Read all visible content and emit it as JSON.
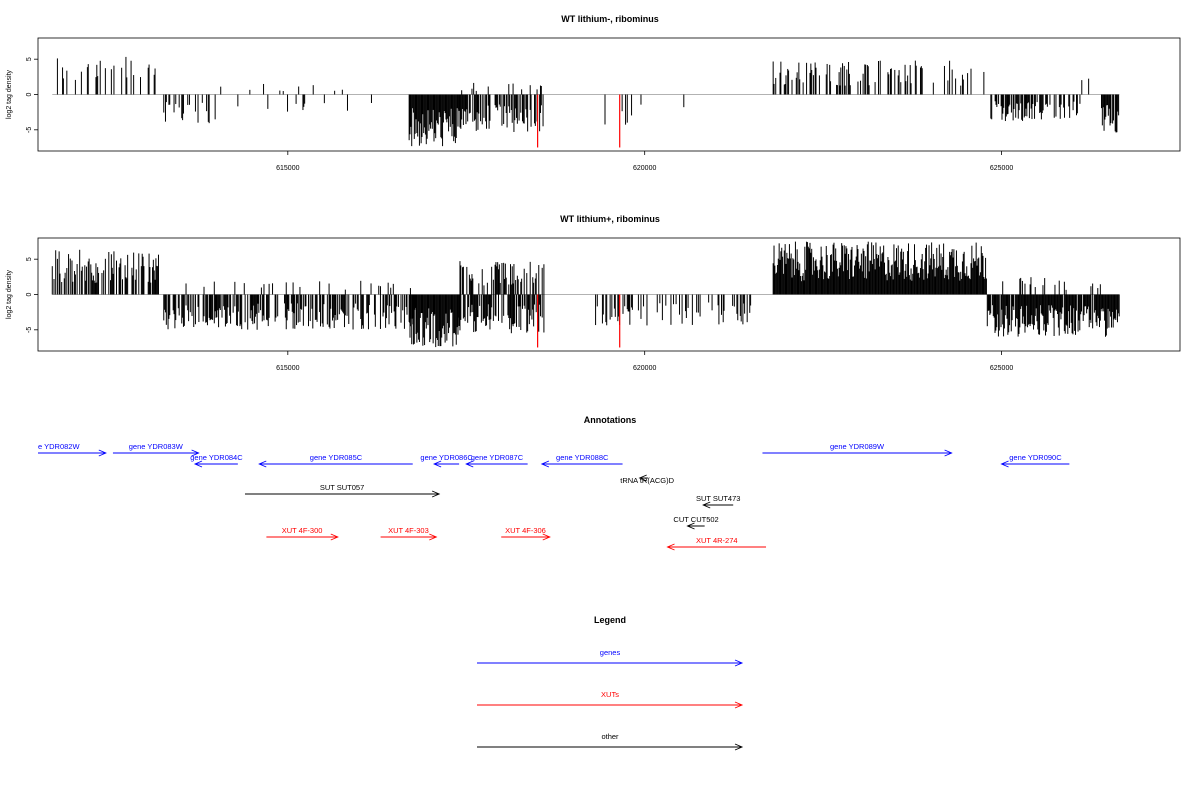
{
  "chart_data": [
    {
      "type": "bar",
      "title": "WT lithium-, ribominus",
      "ylabel": "log2 tag density",
      "xlim": [
        611500,
        627500
      ],
      "ylim": [
        -8,
        8
      ],
      "yticks": [
        -5,
        0,
        5
      ],
      "ytick_labels": [
        "-5",
        "0",
        "5"
      ],
      "xticks": [
        615000,
        620000,
        625000
      ],
      "xtick_labels": [
        "615000",
        "620000",
        "625000"
      ],
      "red_markers": [
        {
          "x": 618500,
          "value": -7.5
        },
        {
          "x": 619650,
          "value": -7.5
        }
      ],
      "density_regions": [
        {
          "start": 611700,
          "end": 613200,
          "sign": 1,
          "max": 5.6,
          "density": 0.25
        },
        {
          "start": 613250,
          "end": 614000,
          "sign": -1,
          "max": 4.2,
          "density": 0.35
        },
        {
          "start": 614000,
          "end": 615800,
          "sign": 1,
          "max": 1.5,
          "density": 0.05
        },
        {
          "start": 614000,
          "end": 616200,
          "sign": -1,
          "max": 2.5,
          "density": 0.04
        },
        {
          "start": 616700,
          "end": 617400,
          "sign": -1,
          "max": 7.5,
          "density": 1.0
        },
        {
          "start": 617400,
          "end": 618600,
          "sign": -1,
          "max": 5.5,
          "density": 0.55
        },
        {
          "start": 617400,
          "end": 618600,
          "sign": 1,
          "max": 1.8,
          "density": 0.08
        },
        {
          "start": 619300,
          "end": 620000,
          "sign": -1,
          "max": 4.5,
          "density": 0.15
        },
        {
          "start": 620500,
          "end": 621500,
          "sign": -1,
          "max": 2.8,
          "density": 0.03
        },
        {
          "start": 621800,
          "end": 624800,
          "sign": 1,
          "max": 4.8,
          "density": 0.3
        },
        {
          "start": 624850,
          "end": 626100,
          "sign": -1,
          "max": 3.8,
          "density": 0.55
        },
        {
          "start": 626100,
          "end": 626400,
          "sign": 1,
          "max": 2.5,
          "density": 0.1
        },
        {
          "start": 626400,
          "end": 626650,
          "sign": -1,
          "max": 5.5,
          "density": 0.9
        }
      ]
    },
    {
      "type": "bar",
      "title": "WT lithium+, ribominus",
      "ylabel": "log2 tag density",
      "xlim": [
        611500,
        627500
      ],
      "ylim": [
        -8,
        8
      ],
      "yticks": [
        -5,
        0,
        5
      ],
      "ytick_labels": [
        "-5",
        "0",
        "5"
      ],
      "xticks": [
        615000,
        620000,
        625000
      ],
      "xtick_labels": [
        "615000",
        "620000",
        "625000"
      ],
      "red_markers": [
        {
          "x": 618500,
          "value": -7.5
        },
        {
          "x": 619650,
          "value": -7.5
        }
      ],
      "density_regions": [
        {
          "start": 611700,
          "end": 613200,
          "sign": 1,
          "max": 6.4,
          "density": 0.6
        },
        {
          "start": 613250,
          "end": 616800,
          "sign": -1,
          "max": 5.0,
          "density": 0.6
        },
        {
          "start": 613250,
          "end": 616800,
          "sign": 1,
          "max": 2.0,
          "density": 0.1
        },
        {
          "start": 616700,
          "end": 617400,
          "sign": -1,
          "max": 7.5,
          "density": 1.0
        },
        {
          "start": 617400,
          "end": 618600,
          "sign": -1,
          "max": 5.5,
          "density": 0.6
        },
        {
          "start": 617400,
          "end": 618600,
          "sign": 1,
          "max": 4.8,
          "density": 0.45
        },
        {
          "start": 619300,
          "end": 621500,
          "sign": -1,
          "max": 4.5,
          "density": 0.3
        },
        {
          "start": 621800,
          "end": 624800,
          "sign": 1,
          "max": 7.5,
          "density": 1.0
        },
        {
          "start": 624800,
          "end": 626650,
          "sign": -1,
          "max": 6.0,
          "density": 0.95
        },
        {
          "start": 624800,
          "end": 626400,
          "sign": 1,
          "max": 2.5,
          "density": 0.1
        }
      ]
    },
    {
      "type": "annotation",
      "title": "Annotations",
      "xlim": [
        611500,
        627500
      ],
      "features": [
        {
          "label": "e YDR082W",
          "type": "gene",
          "strand": "+",
          "start": 611500,
          "end": 612450,
          "row": 0
        },
        {
          "label": "gene YDR083W",
          "type": "gene",
          "strand": "+",
          "start": 612550,
          "end": 613750,
          "row": 0
        },
        {
          "label": "gene YDR084C",
          "type": "gene",
          "strand": "-",
          "start": 613700,
          "end": 614300,
          "row": 1
        },
        {
          "label": "gene YDR085C",
          "type": "gene",
          "strand": "-",
          "start": 614600,
          "end": 616750,
          "row": 1
        },
        {
          "label": "gene YDR086C",
          "type": "gene",
          "strand": "-",
          "start": 617050,
          "end": 617400,
          "row": 1
        },
        {
          "label": "gene YDR087C",
          "type": "gene",
          "strand": "-",
          "start": 617500,
          "end": 618360,
          "row": 1
        },
        {
          "label": "gene YDR088C",
          "type": "gene",
          "strand": "-",
          "start": 618560,
          "end": 619690,
          "row": 1
        },
        {
          "label": "gene YDR089W",
          "type": "gene",
          "strand": "+",
          "start": 621650,
          "end": 624300,
          "row": 0
        },
        {
          "label": "gene YDR090C",
          "type": "gene",
          "strand": "-",
          "start": 625000,
          "end": 625950,
          "row": 1
        },
        {
          "label": "tRNA tR(ACG)D",
          "type": "other",
          "strand": "-",
          "start": 619930,
          "end": 620050,
          "row": 2
        },
        {
          "label": "SUT SUT057",
          "type": "other",
          "strand": "+",
          "start": 614400,
          "end": 617120,
          "row": 3
        },
        {
          "label": "SUT SUT473",
          "type": "other",
          "strand": "-",
          "start": 620820,
          "end": 621240,
          "row": 4
        },
        {
          "label": "CUT CUT502",
          "type": "other",
          "strand": "-",
          "start": 620600,
          "end": 620840,
          "row": 5
        },
        {
          "label": "XUT 4F-300",
          "type": "XUT",
          "strand": "+",
          "start": 614700,
          "end": 615700,
          "row": 6
        },
        {
          "label": "XUT 4F-303",
          "type": "XUT",
          "strand": "+",
          "start": 616300,
          "end": 617080,
          "row": 6
        },
        {
          "label": "XUT 4F-306",
          "type": "XUT",
          "strand": "+",
          "start": 617990,
          "end": 618670,
          "row": 6
        },
        {
          "label": "XUT 4R-274",
          "type": "XUT",
          "strand": "-",
          "start": 620320,
          "end": 621700,
          "row": 7
        }
      ]
    },
    {
      "type": "legend",
      "title": "Legend",
      "entries": [
        {
          "label": "genes",
          "color": "#0000ff"
        },
        {
          "label": "XUTs",
          "color": "#ff0000"
        },
        {
          "label": "other",
          "color": "#000000"
        }
      ]
    }
  ],
  "colors": {
    "gene": "#0000ff",
    "XUT": "#ff0000",
    "other": "#000000",
    "marker": "#ff0000",
    "bars": "#000000",
    "baseline": "#999999"
  }
}
